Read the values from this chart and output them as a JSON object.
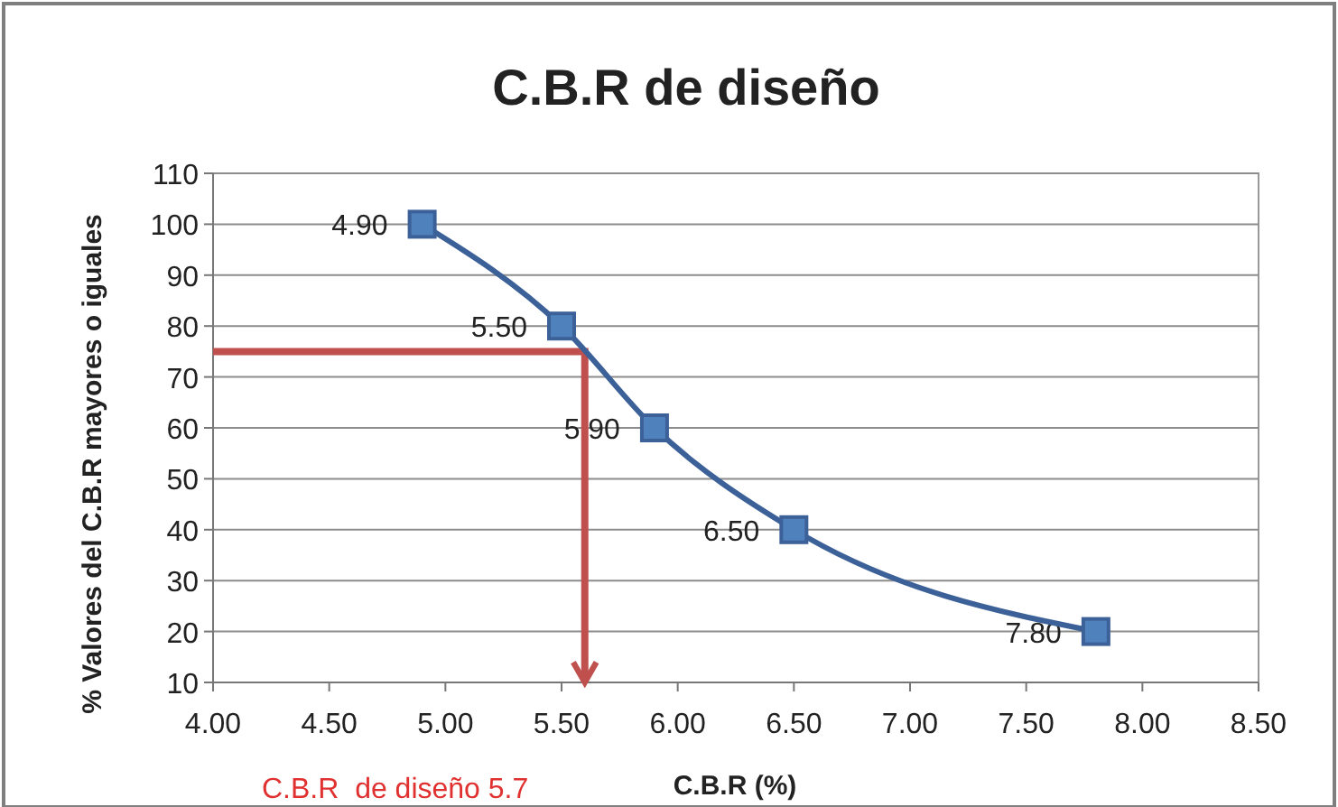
{
  "chart_data": {
    "type": "line",
    "title": "C.B.R de diseño",
    "xlabel": "C.B.R (%)",
    "ylabel": "% Valores del C.B.R mayores o iguales",
    "x": [
      4.9,
      5.5,
      5.9,
      6.5,
      7.8
    ],
    "series": [
      {
        "color": "#3c6198",
        "values": [
          100,
          80,
          60,
          40,
          20
        ],
        "marker": "square"
      }
    ],
    "ref_lines": [
      {
        "axis": "y",
        "value": 75,
        "color": "#c0504d"
      },
      {
        "axis": "x",
        "value": 5.6,
        "color": "#c0504d"
      }
    ],
    "annotations": [
      {
        "text": "4.90",
        "x": 4.9,
        "y": 100
      },
      {
        "text": "5.50",
        "x": 5.5,
        "y": 80
      },
      {
        "text": "5.90",
        "x": 5.9,
        "y": 60
      },
      {
        "text": "6.50",
        "x": 6.5,
        "y": 40
      },
      {
        "text": "7.80",
        "x": 7.8,
        "y": 20
      },
      "C.B.R  de diseño 5.7"
    ],
    "xlim": [
      4,
      8.5
    ],
    "xticks": [
      {
        "value": 4,
        "label": "4.00"
      },
      {
        "value": 4.5,
        "label": "4.50"
      },
      {
        "value": 5,
        "label": "5.00"
      },
      {
        "value": 5.5,
        "label": "5.50"
      },
      {
        "value": 6,
        "label": "6.00"
      },
      {
        "value": 6.5,
        "label": "6.50"
      },
      {
        "value": 7,
        "label": "7.00"
      },
      {
        "value": 7.5,
        "label": "7.50"
      },
      {
        "value": 8,
        "label": "8.00"
      },
      {
        "value": 8.5,
        "label": "8.50"
      }
    ],
    "ylim": [
      10,
      110
    ],
    "yticks": [
      10,
      20,
      30,
      40,
      50,
      60,
      70,
      80,
      90,
      100,
      110
    ],
    "grid": "y"
  }
}
